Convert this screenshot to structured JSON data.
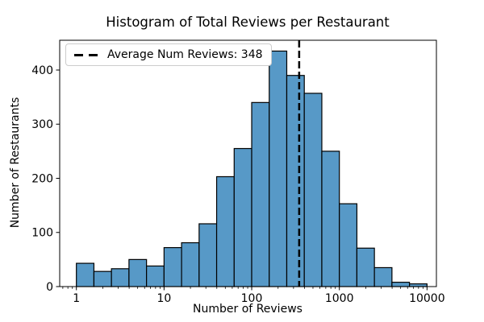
{
  "chart_data": {
    "type": "bar",
    "subtype": "histogram",
    "title": "Histogram of Total Reviews per Restaurant",
    "xlabel": "Number of Reviews",
    "ylabel": "Number of Restaurants",
    "x_scale": "log",
    "xlim": [
      0.645,
      12800
    ],
    "ylim": [
      0,
      455
    ],
    "x_ticks": [
      1,
      10,
      100,
      1000,
      10000
    ],
    "x_tick_labels": [
      "1",
      "10",
      "100",
      "1000",
      "10000"
    ],
    "y_ticks": [
      0,
      100,
      200,
      300,
      400
    ],
    "y_tick_labels": [
      "0",
      "100",
      "200",
      "300",
      "400"
    ],
    "grid": false,
    "bin_edges": [
      1,
      1.585,
      2.512,
      3.981,
      6.31,
      10,
      15.85,
      25.12,
      39.81,
      63.1,
      100,
      158.5,
      251.2,
      398.1,
      631,
      1000,
      1585,
      2512,
      3981,
      6310,
      10000
    ],
    "counts": [
      43,
      28,
      33,
      50,
      38,
      72,
      81,
      116,
      203,
      255,
      340,
      435,
      390,
      357,
      250,
      153,
      71,
      35,
      8,
      5
    ],
    "average_line": {
      "value": 348,
      "color": "#000000",
      "style": "dashed"
    },
    "legend": {
      "position": "upper left",
      "entries": [
        {
          "label": "Average Num Reviews: 348",
          "marker": "dashed-line",
          "color": "#000000"
        }
      ]
    },
    "colors": {
      "bar_fill": "#5799c7",
      "bar_edge": "#000000",
      "axis": "#000000",
      "background": "#ffffff"
    }
  }
}
